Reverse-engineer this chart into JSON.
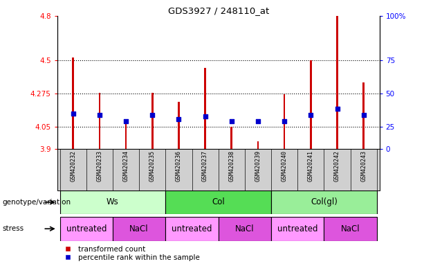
{
  "title": "GDS3927 / 248110_at",
  "samples": [
    "GSM420232",
    "GSM420233",
    "GSM420234",
    "GSM420235",
    "GSM420236",
    "GSM420237",
    "GSM420238",
    "GSM420239",
    "GSM420240",
    "GSM420241",
    "GSM420242",
    "GSM420243"
  ],
  "red_values": [
    4.52,
    4.28,
    4.09,
    4.28,
    4.22,
    4.45,
    4.05,
    3.95,
    4.27,
    4.5,
    4.8,
    4.35
  ],
  "blue_values": [
    4.14,
    4.13,
    4.09,
    4.13,
    4.1,
    4.12,
    4.09,
    4.09,
    4.09,
    4.13,
    4.17,
    4.13
  ],
  "ymin": 3.9,
  "ymax": 4.8,
  "yticks": [
    3.9,
    4.05,
    4.275,
    4.5,
    4.8
  ],
  "ytick_labels": [
    "3.9",
    "4.05",
    "4.275",
    "4.5",
    "4.8"
  ],
  "right_ytick_labels": [
    "0",
    "25",
    "50",
    "75",
    "100%"
  ],
  "genotype_groups": [
    {
      "label": "Ws",
      "start": 0,
      "end": 3,
      "color": "#ccffcc"
    },
    {
      "label": "Col",
      "start": 4,
      "end": 7,
      "color": "#55dd55"
    },
    {
      "label": "Col(gl)",
      "start": 8,
      "end": 11,
      "color": "#99ee99"
    }
  ],
  "stress_groups": [
    {
      "label": "untreated",
      "start": 0,
      "end": 1,
      "color": "#ff99ff"
    },
    {
      "label": "NaCl",
      "start": 2,
      "end": 3,
      "color": "#dd55dd"
    },
    {
      "label": "untreated",
      "start": 4,
      "end": 5,
      "color": "#ff99ff"
    },
    {
      "label": "NaCl",
      "start": 6,
      "end": 7,
      "color": "#dd55dd"
    },
    {
      "label": "untreated",
      "start": 8,
      "end": 9,
      "color": "#ff99ff"
    },
    {
      "label": "NaCl",
      "start": 10,
      "end": 11,
      "color": "#dd55dd"
    }
  ],
  "bar_color": "#cc0000",
  "dot_color": "#0000cc",
  "bar_width": 0.07,
  "dot_size": 18,
  "legend_red": "transformed count",
  "legend_blue": "percentile rank within the sample",
  "genotype_label": "genotype/variation",
  "stress_label": "stress",
  "grid_lines": [
    4.05,
    4.275,
    4.5
  ],
  "xlabels_bg": "#d0d0d0"
}
